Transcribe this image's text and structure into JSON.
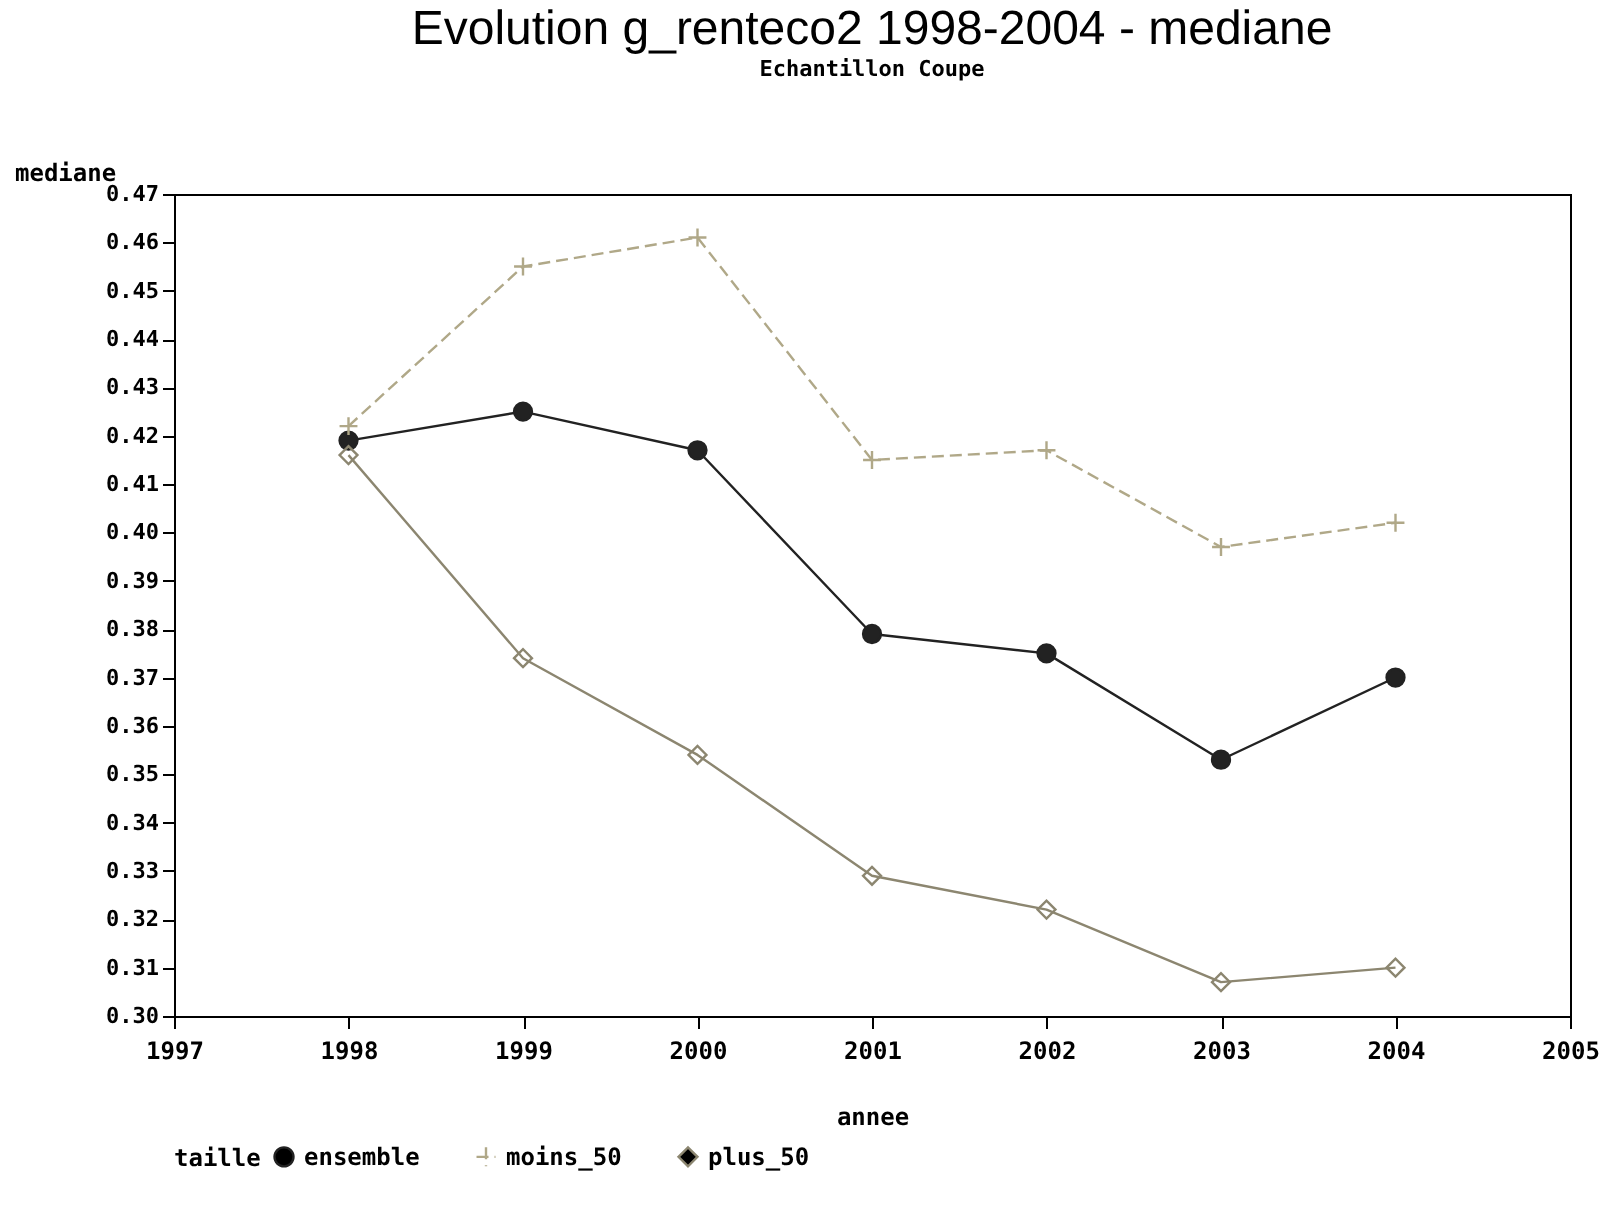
{
  "chart_data": {
    "type": "line",
    "title": "Evolution g_renteco2 1998-2004 - mediane",
    "subtitle": "Echantillon Coupe",
    "xlabel": "annee",
    "ylabel": "mediane",
    "legend_title": "taille",
    "legend": "bottom",
    "grid": false,
    "x": [
      1998,
      1999,
      2000,
      2001,
      2002,
      2003,
      2004
    ],
    "xlim": [
      1997,
      2005
    ],
    "xticks": [
      1997,
      1998,
      1999,
      2000,
      2001,
      2002,
      2003,
      2004,
      2005
    ],
    "ylim": [
      0.3,
      0.47
    ],
    "yticks": [
      {
        "value": 0.3,
        "label": "0.30"
      },
      {
        "value": 0.31,
        "label": "0.31"
      },
      {
        "value": 0.32,
        "label": "0.32"
      },
      {
        "value": 0.33,
        "label": "0.33"
      },
      {
        "value": 0.34,
        "label": "0.34"
      },
      {
        "value": 0.35,
        "label": "0.35"
      },
      {
        "value": 0.36,
        "label": "0.36"
      },
      {
        "value": 0.37,
        "label": "0.37"
      },
      {
        "value": 0.38,
        "label": "0.38"
      },
      {
        "value": 0.39,
        "label": "0.39"
      },
      {
        "value": 0.4,
        "label": "0.40"
      },
      {
        "value": 0.41,
        "label": "0.41"
      },
      {
        "value": 0.42,
        "label": "0.42"
      },
      {
        "value": 0.43,
        "label": "0.43"
      },
      {
        "value": 0.44,
        "label": "0.44"
      },
      {
        "value": 0.45,
        "label": "0.45"
      },
      {
        "value": 0.46,
        "label": "0.46"
      },
      {
        "value": 0.47,
        "label": "0.47"
      }
    ],
    "series": [
      {
        "name": "ensemble",
        "color": "#222222",
        "marker": "circle",
        "line_style": "solid",
        "values": [
          0.419,
          0.425,
          0.417,
          0.379,
          0.375,
          0.353,
          0.37
        ]
      },
      {
        "name": "moins_50",
        "color": "#b0a888",
        "marker": "cross",
        "line_style": "dashed",
        "values": [
          0.422,
          0.455,
          0.461,
          0.415,
          0.417,
          0.397,
          0.402
        ]
      },
      {
        "name": "plus_50",
        "color": "#8c8670",
        "marker": "diamond",
        "line_style": "solid",
        "values": [
          0.416,
          0.374,
          0.354,
          0.329,
          0.322,
          0.307,
          0.31
        ]
      }
    ]
  }
}
